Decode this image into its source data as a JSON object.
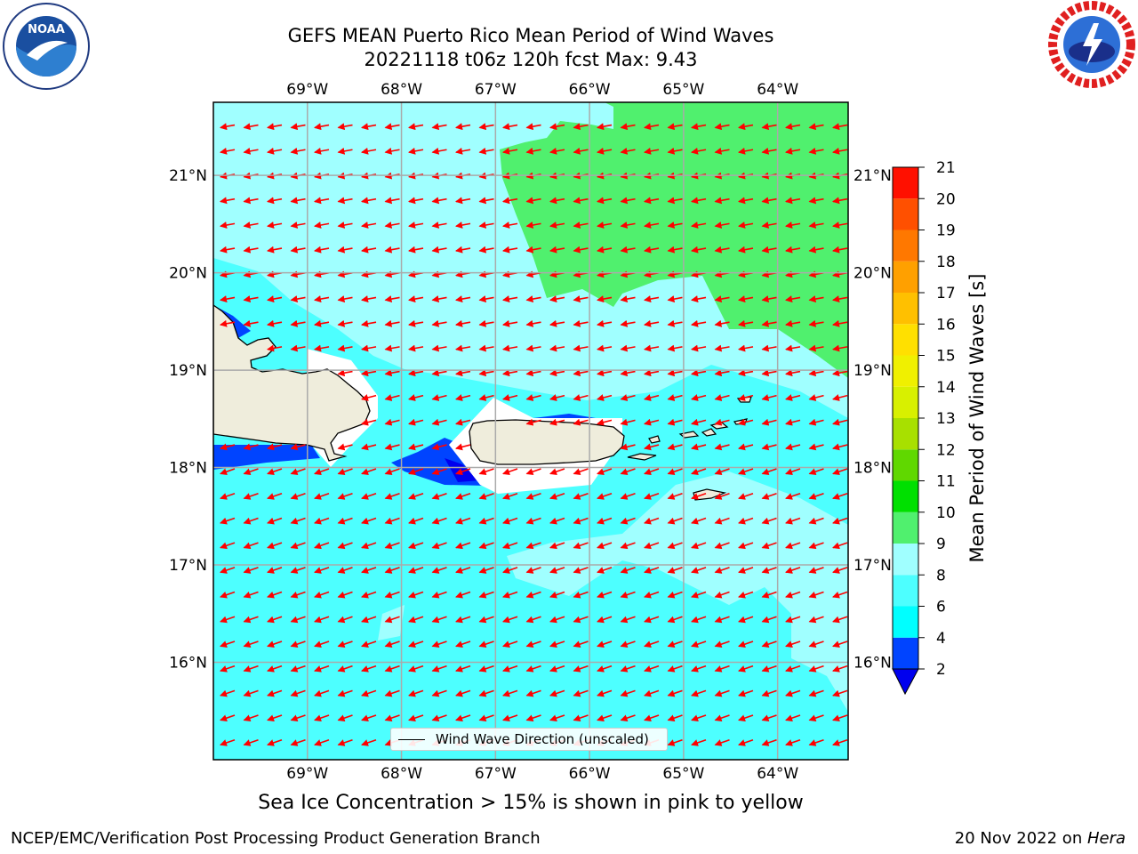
{
  "title": {
    "line1": "GEFS MEAN Puerto Rico Mean Period of Wind Waves",
    "line2": "20221118 t06z 120h fcst   Max: 9.43"
  },
  "logos": {
    "left": {
      "icon": "noaa-logo",
      "text": "NOAA"
    },
    "right": {
      "icon": "nws-logo"
    }
  },
  "map": {
    "lon_range": [
      -70.0,
      -63.25
    ],
    "lat_range": [
      15.0,
      21.75
    ],
    "lon_ticks": [
      "69°W",
      "68°W",
      "67°W",
      "66°W",
      "65°W",
      "64°W"
    ],
    "lat_ticks": [
      "21°N",
      "20°N",
      "19°N",
      "18°N",
      "17°N",
      "16°N"
    ],
    "grid": true,
    "arrow_color": "#ff0000",
    "land_color": "#efeddc"
  },
  "colorbar": {
    "label": "Mean Period of Wind Waves [s]",
    "ticks": [
      "2",
      "4",
      "6",
      "8",
      "9",
      "10",
      "11",
      "12",
      "13",
      "14",
      "15",
      "16",
      "17",
      "18",
      "19",
      "20",
      "21"
    ],
    "colors": [
      "#0044ff",
      "#00ffff",
      "#4dffff",
      "#a0ffff",
      "#50f06e",
      "#00e000",
      "#60d800",
      "#a8e000",
      "#d8f000",
      "#f0f000",
      "#ffe000",
      "#ffc000",
      "#ffa000",
      "#ff7800",
      "#ff5000",
      "#ff1000"
    ],
    "extend_min_color": "#0000ee"
  },
  "legend": {
    "label": "Wind Wave Direction (unscaled)"
  },
  "footer": {
    "sea_ice_note": "Sea Ice Concentration > 15% is shown in pink to yellow",
    "left": "NCEP/EMC/Verification Post Processing Product Generation Branch",
    "right_prefix": "20 Nov 2022 on ",
    "right_host": "Hera"
  }
}
